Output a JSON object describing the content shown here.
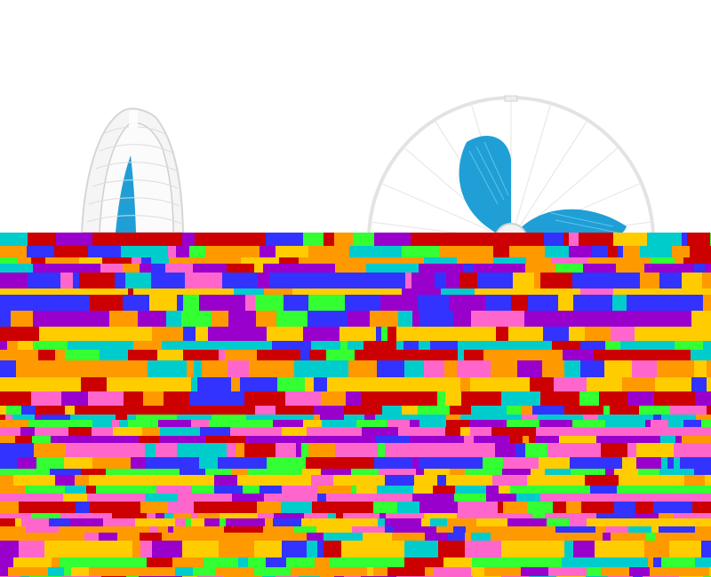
{
  "scene": {
    "background_color": "#ffffff",
    "fan_blade_color": "#1f9fd6",
    "fan_grille_color": "#e9e9e9",
    "corruption_colors": [
      "#ff66cc",
      "#33ff33",
      "#cc0000",
      "#3333ff",
      "#ffcc00",
      "#00cccc",
      "#9900cc",
      "#ff9900"
    ],
    "subjects": [
      "tower-fan",
      "pedestal-fan"
    ]
  }
}
